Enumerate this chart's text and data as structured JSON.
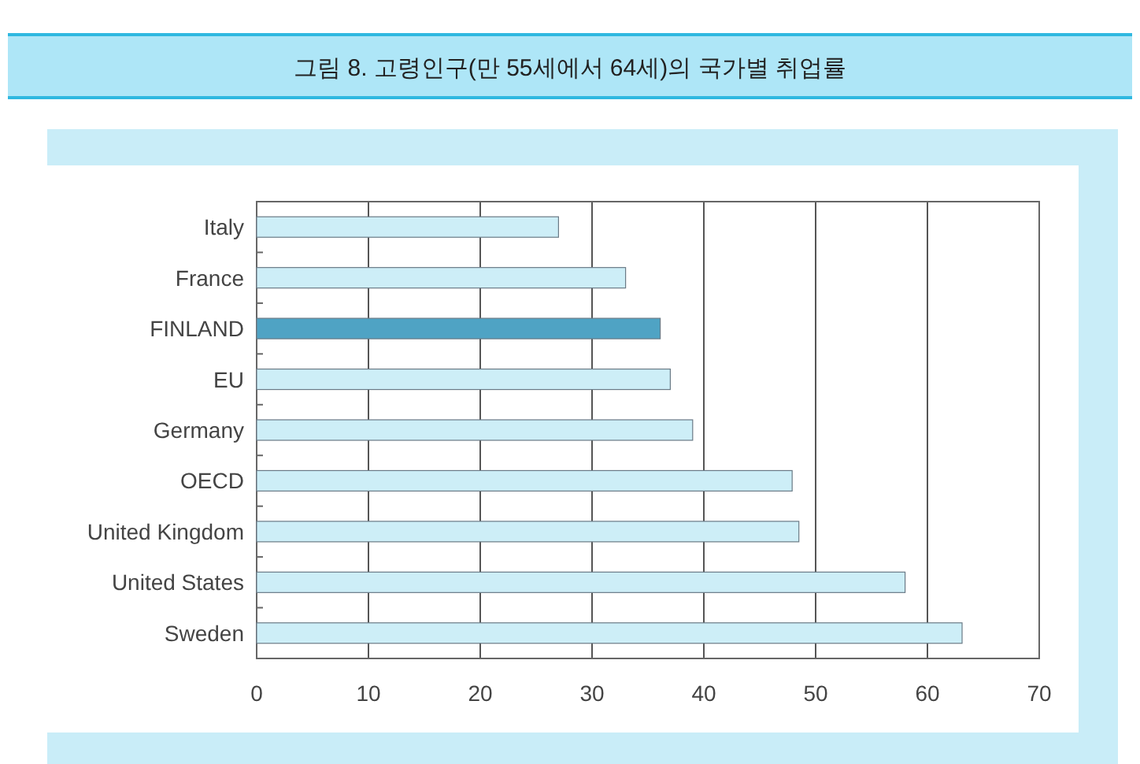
{
  "chart_data": {
    "type": "bar",
    "orientation": "horizontal",
    "title": "그림 8. 고령인구(만 55세에서 64세)의 국가별 취업률",
    "categories": [
      "Italy",
      "France",
      "FINLAND",
      "EU",
      "Germany",
      "OECD",
      "United Kingdom",
      "United States",
      "Sweden"
    ],
    "values": [
      27,
      33,
      36.1,
      37,
      39,
      47.9,
      48.5,
      58,
      63.1
    ],
    "colors": [
      "#cdeef7",
      "#cdeef7",
      "#4fa3c4",
      "#cdeef7",
      "#cdeef7",
      "#cdeef7",
      "#cdeef7",
      "#cdeef7",
      "#cdeef7"
    ],
    "xlim": [
      0,
      70
    ],
    "xticks": [
      0,
      10,
      20,
      30,
      40,
      50,
      60,
      70
    ],
    "grid": "x"
  }
}
